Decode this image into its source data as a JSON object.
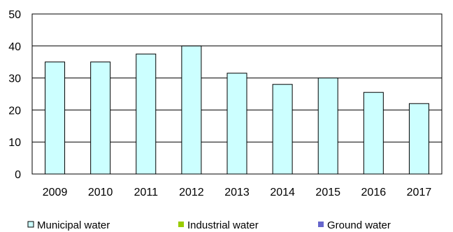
{
  "chart_data": {
    "type": "bar",
    "categories": [
      "2009",
      "2010",
      "2011",
      "2012",
      "2013",
      "2014",
      "2015",
      "2016",
      "2017"
    ],
    "series": [
      {
        "name": "Municipal water",
        "values": [
          35,
          35,
          37.5,
          40,
          31.5,
          28,
          30,
          25.5,
          22
        ]
      },
      {
        "name": "Industrial water",
        "values": [
          0,
          0,
          0,
          0,
          0,
          0,
          0,
          0,
          0
        ]
      },
      {
        "name": "Ground water",
        "values": [
          0,
          0,
          0,
          0,
          0,
          0,
          0,
          0,
          0
        ]
      }
    ],
    "y_ticks": [
      "0",
      "10",
      "20",
      "30",
      "40",
      "50"
    ],
    "ylim": [
      0,
      50
    ],
    "grid": true,
    "legend_position": "bottom",
    "colors": {
      "municipal": "#ccffff",
      "industrial": "#99cc00",
      "ground": "#6666cc",
      "bar_border": "#000000",
      "grid": "#000000"
    }
  }
}
